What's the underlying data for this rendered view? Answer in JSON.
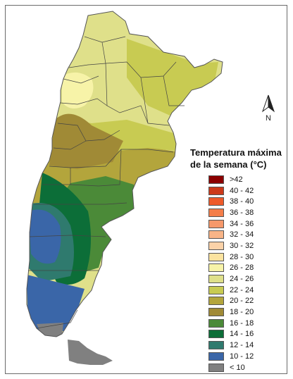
{
  "map": {
    "country": "Argentina",
    "zones": [
      {
        "range": "26 - 28",
        "color": "#f7f3a8"
      },
      {
        "range": "24 - 26",
        "color": "#dfe08a"
      },
      {
        "range": "22 - 24",
        "color": "#c8cb52"
      },
      {
        "range": "20 - 22",
        "color": "#b3a53c"
      },
      {
        "range": "18 - 20",
        "color": "#a08a36"
      },
      {
        "range": "16 - 18",
        "color": "#4b8a38"
      },
      {
        "range": "14 - 16",
        "color": "#0c6e38"
      },
      {
        "range": "12 - 14",
        "color": "#2f7a6e"
      },
      {
        "range": "10 - 12",
        "color": "#3a66a8"
      },
      {
        "range": "< 10",
        "color": "#808080"
      }
    ]
  },
  "north_arrow": {
    "label": "N",
    "icon": "north-arrow-icon"
  },
  "legend": {
    "title": "Temperatura máxima\nde la semana (°C)",
    "items": [
      {
        "label": ">42",
        "color": "#8b0000"
      },
      {
        "label": "40 - 42",
        "color": "#cc3a1a"
      },
      {
        "label": "38 - 40",
        "color": "#ee5a2a"
      },
      {
        "label": "36 - 38",
        "color": "#f47e4a"
      },
      {
        "label": "34 - 36",
        "color": "#f6986a"
      },
      {
        "label": "32 - 34",
        "color": "#f8b487"
      },
      {
        "label": "30 - 32",
        "color": "#fbd2a8"
      },
      {
        "label": "28 - 30",
        "color": "#fbe39f"
      },
      {
        "label": "26 - 28",
        "color": "#f7f3a8"
      },
      {
        "label": "24 - 26",
        "color": "#dfe08a"
      },
      {
        "label": "22 - 24",
        "color": "#c8cb52"
      },
      {
        "label": "20 - 22",
        "color": "#b3a53c"
      },
      {
        "label": "18 - 20",
        "color": "#a08a36"
      },
      {
        "label": "16 - 18",
        "color": "#4b8a38"
      },
      {
        "label": "14 - 16",
        "color": "#0c6e38"
      },
      {
        "label": "12 - 14",
        "color": "#2f7a6e"
      },
      {
        "label": "10 - 12",
        "color": "#3a66a8"
      },
      {
        "label": "< 10",
        "color": "#808080"
      }
    ]
  }
}
